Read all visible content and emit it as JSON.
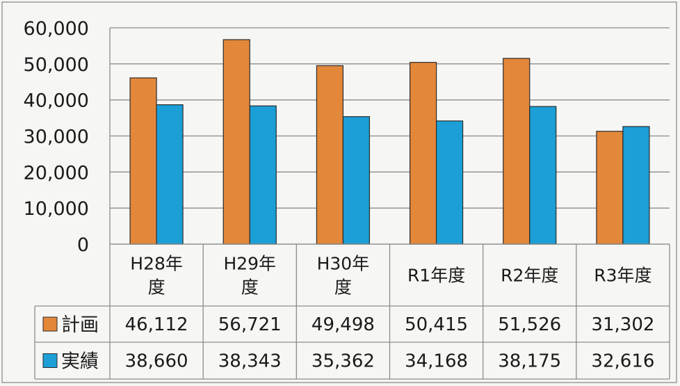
{
  "chart_data": {
    "type": "bar",
    "categories": [
      [
        "H28年",
        "度"
      ],
      [
        "H29年",
        "度"
      ],
      [
        "H30年",
        "度"
      ],
      [
        "R1年度"
      ],
      [
        "R2年度"
      ],
      [
        "R3年度"
      ]
    ],
    "series": [
      {
        "name": "計画",
        "color": "#e3873a",
        "values": [
          46112,
          56721,
          49498,
          50415,
          51526,
          31302
        ],
        "labels": [
          "46,112",
          "56,721",
          "49,498",
          "50,415",
          "51,526",
          "31,302"
        ]
      },
      {
        "name": "実績",
        "color": "#1b9fd6",
        "values": [
          38660,
          38343,
          35362,
          34168,
          38175,
          32616
        ],
        "labels": [
          "38,660",
          "38,343",
          "35,362",
          "34,168",
          "38,175",
          "32,616"
        ]
      }
    ],
    "yticks": [
      "0",
      "10,000",
      "20,000",
      "30,000",
      "40,000",
      "50,000",
      "60,000"
    ],
    "ylim": [
      0,
      60000
    ],
    "grid": true,
    "legend": "data-table"
  }
}
